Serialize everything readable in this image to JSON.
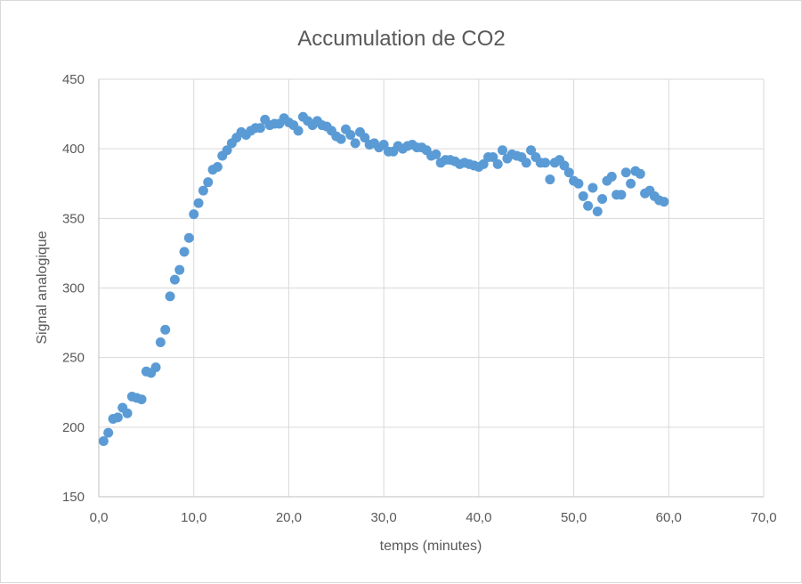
{
  "chart_data": {
    "type": "scatter",
    "title": "Accumulation de CO2",
    "xlabel": "temps (minutes)",
    "ylabel": "Signal analogique",
    "xlim": [
      0,
      70
    ],
    "ylim": [
      150,
      450
    ],
    "x_ticks": [
      0,
      10,
      20,
      30,
      40,
      50,
      60,
      70
    ],
    "x_tick_labels": [
      "0,0",
      "10,0",
      "20,0",
      "30,0",
      "40,0",
      "50,0",
      "60,0",
      "70,0"
    ],
    "y_ticks": [
      150,
      200,
      250,
      300,
      350,
      400,
      450
    ],
    "y_tick_labels": [
      "150",
      "200",
      "250",
      "300",
      "350",
      "400",
      "450"
    ],
    "grid": true,
    "legend": "none",
    "marker_color": "#5b9bd5",
    "points": [
      [
        0.5,
        190
      ],
      [
        1.0,
        196
      ],
      [
        1.5,
        206
      ],
      [
        2.0,
        207
      ],
      [
        2.5,
        214
      ],
      [
        3.0,
        210
      ],
      [
        3.5,
        222
      ],
      [
        4.0,
        221
      ],
      [
        4.5,
        220
      ],
      [
        5.0,
        240
      ],
      [
        5.5,
        239
      ],
      [
        6.0,
        243
      ],
      [
        6.5,
        261
      ],
      [
        7.0,
        270
      ],
      [
        7.5,
        294
      ],
      [
        8.0,
        306
      ],
      [
        8.5,
        313
      ],
      [
        9.0,
        326
      ],
      [
        9.5,
        336
      ],
      [
        10.0,
        353
      ],
      [
        10.5,
        361
      ],
      [
        11.0,
        370
      ],
      [
        11.5,
        376
      ],
      [
        12.0,
        385
      ],
      [
        12.5,
        387
      ],
      [
        13.0,
        395
      ],
      [
        13.5,
        399
      ],
      [
        14.0,
        404
      ],
      [
        14.5,
        408
      ],
      [
        15.0,
        412
      ],
      [
        15.5,
        410
      ],
      [
        16.0,
        413
      ],
      [
        16.5,
        415
      ],
      [
        17.0,
        415
      ],
      [
        17.5,
        421
      ],
      [
        18.0,
        417
      ],
      [
        18.5,
        418
      ],
      [
        19.0,
        418
      ],
      [
        19.5,
        422
      ],
      [
        20.0,
        419
      ],
      [
        20.5,
        417
      ],
      [
        21.0,
        413
      ],
      [
        21.5,
        423
      ],
      [
        22.0,
        420
      ],
      [
        22.5,
        417
      ],
      [
        23.0,
        420
      ],
      [
        23.5,
        417
      ],
      [
        24.0,
        416
      ],
      [
        24.5,
        413
      ],
      [
        25.0,
        409
      ],
      [
        25.5,
        407
      ],
      [
        26.0,
        414
      ],
      [
        26.5,
        410
      ],
      [
        27.0,
        404
      ],
      [
        27.5,
        412
      ],
      [
        28.0,
        408
      ],
      [
        28.5,
        403
      ],
      [
        29.0,
        404
      ],
      [
        29.5,
        401
      ],
      [
        30.0,
        403
      ],
      [
        30.5,
        398
      ],
      [
        31.0,
        398
      ],
      [
        31.5,
        402
      ],
      [
        32.0,
        400
      ],
      [
        32.5,
        402
      ],
      [
        33.0,
        403
      ],
      [
        33.5,
        401
      ],
      [
        34.0,
        401
      ],
      [
        34.5,
        399
      ],
      [
        35.0,
        395
      ],
      [
        35.5,
        396
      ],
      [
        36.0,
        390
      ],
      [
        36.5,
        392
      ],
      [
        37.0,
        392
      ],
      [
        37.5,
        391
      ],
      [
        38.0,
        389
      ],
      [
        38.5,
        390
      ],
      [
        39.0,
        389
      ],
      [
        39.5,
        388
      ],
      [
        40.0,
        387
      ],
      [
        40.5,
        389
      ],
      [
        41.0,
        394
      ],
      [
        41.5,
        394
      ],
      [
        42.0,
        389
      ],
      [
        42.5,
        399
      ],
      [
        43.0,
        393
      ],
      [
        43.5,
        396
      ],
      [
        44.0,
        395
      ],
      [
        44.5,
        394
      ],
      [
        45.0,
        390
      ],
      [
        45.5,
        399
      ],
      [
        46.0,
        394
      ],
      [
        46.5,
        390
      ],
      [
        47.0,
        390
      ],
      [
        47.5,
        378
      ],
      [
        48.0,
        390
      ],
      [
        48.5,
        392
      ],
      [
        49.0,
        388
      ],
      [
        49.5,
        383
      ],
      [
        50.0,
        377
      ],
      [
        50.5,
        375
      ],
      [
        51.0,
        366
      ],
      [
        51.5,
        359
      ],
      [
        52.0,
        372
      ],
      [
        52.5,
        355
      ],
      [
        53.0,
        364
      ],
      [
        53.5,
        377
      ],
      [
        54.0,
        380
      ],
      [
        54.5,
        367
      ],
      [
        55.0,
        367
      ],
      [
        55.5,
        383
      ],
      [
        56.0,
        375
      ],
      [
        56.5,
        384
      ],
      [
        57.0,
        382
      ],
      [
        57.5,
        368
      ],
      [
        58.0,
        370
      ],
      [
        58.5,
        366
      ],
      [
        59.0,
        363
      ],
      [
        59.5,
        362
      ]
    ]
  }
}
